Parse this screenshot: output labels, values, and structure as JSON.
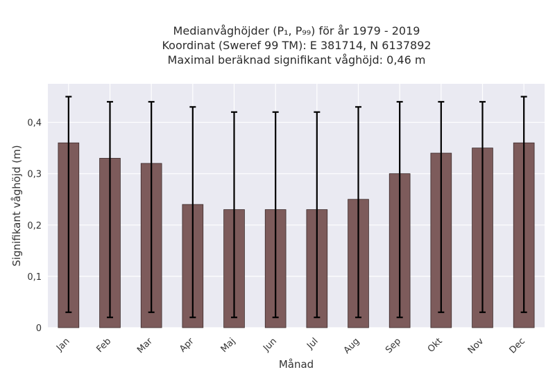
{
  "chart_data": {
    "type": "bar",
    "title_lines": [
      "Medianvåghöjder (P₁, P₉₉) för år 1979 - 2019",
      "Koordinat (Sweref 99 TM): E 381714, N 6137892",
      "Maximal beräknad signifikant våghöjd: 0,46 m"
    ],
    "xlabel": "Månad",
    "ylabel": "Signifikant våghöjd (m)",
    "categories": [
      "Jan",
      "Feb",
      "Mar",
      "Apr",
      "Maj",
      "Jun",
      "Jul",
      "Aug",
      "Sep",
      "Okt",
      "Nov",
      "Dec"
    ],
    "values": [
      0.36,
      0.33,
      0.32,
      0.24,
      0.23,
      0.23,
      0.23,
      0.25,
      0.3,
      0.34,
      0.35,
      0.36
    ],
    "error_low": [
      0.03,
      0.02,
      0.03,
      0.02,
      0.02,
      0.02,
      0.02,
      0.02,
      0.02,
      0.03,
      0.03,
      0.03
    ],
    "error_high": [
      0.45,
      0.44,
      0.44,
      0.43,
      0.42,
      0.42,
      0.42,
      0.43,
      0.44,
      0.44,
      0.44,
      0.45
    ],
    "ylim": [
      0,
      0.475
    ],
    "yticks": [
      0,
      0.1,
      0.2,
      0.3,
      0.4
    ],
    "ytick_labels": [
      "0",
      "0,1",
      "0,2",
      "0,3",
      "0,4"
    ],
    "grid": true,
    "colors": {
      "bar": "#7d5b5b",
      "bar_edge": "#3a2a2a",
      "error": "#000000",
      "background": "#eaeaf2",
      "grid": "#ffffff"
    }
  }
}
